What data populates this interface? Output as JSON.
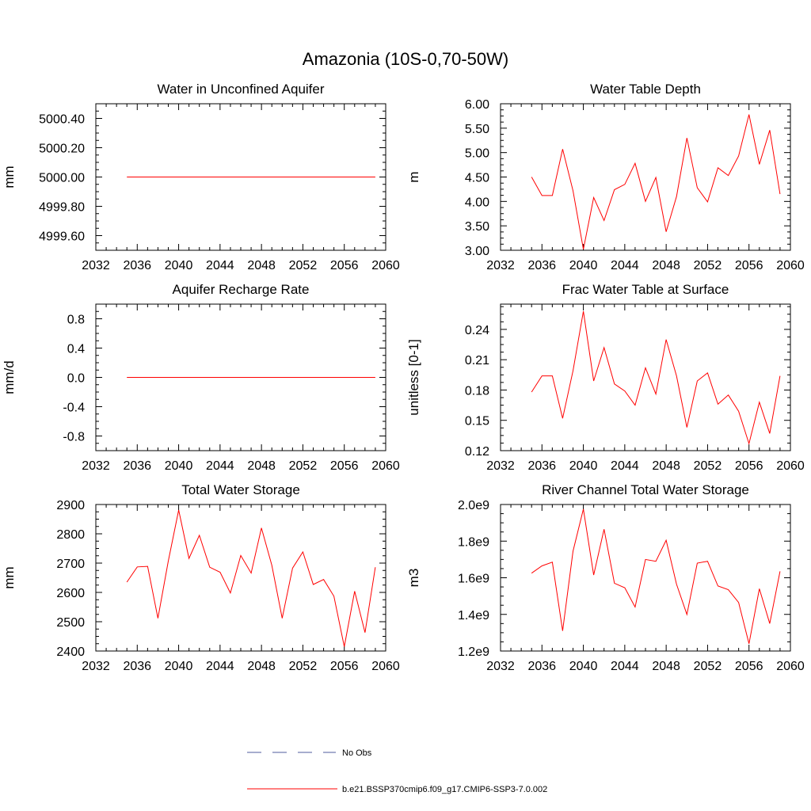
{
  "figure": {
    "title": "Amazonia (10S-0,70-50W)",
    "line_color": "#ff0000",
    "obs_color": "#4f5b9e"
  },
  "legend": {
    "obs_label": "No Obs",
    "model_label": "b.e21.BSSP370cmip6.f09_g17.CMIP6-SSP3-7.0.002"
  },
  "chart_data": [
    {
      "type": "line",
      "title": "Water in Unconfined Aquifer",
      "ylabel": "mm",
      "xlim": [
        2032,
        2060
      ],
      "xticks": [
        2032,
        2036,
        2040,
        2044,
        2048,
        2052,
        2056,
        2060
      ],
      "ylim": [
        4999.5,
        5000.5
      ],
      "yticks": [
        4999.6,
        4999.8,
        5000.0,
        5000.2,
        5000.4
      ],
      "ytick_labels": [
        "4999.60",
        "4999.80",
        "5000.00",
        "5000.20",
        "5000.40"
      ],
      "x": [
        2035,
        2036,
        2037,
        2038,
        2039,
        2040,
        2041,
        2042,
        2043,
        2044,
        2045,
        2046,
        2047,
        2048,
        2049,
        2050,
        2051,
        2052,
        2053,
        2054,
        2055,
        2056,
        2057,
        2058,
        2059
      ],
      "series": [
        {
          "values": [
            5000,
            5000,
            5000,
            5000,
            5000,
            5000,
            5000,
            5000,
            5000,
            5000,
            5000,
            5000,
            5000,
            5000,
            5000,
            5000,
            5000,
            5000,
            5000,
            5000,
            5000,
            5000,
            5000,
            5000,
            5000
          ]
        }
      ]
    },
    {
      "type": "line",
      "title": "Water Table Depth",
      "ylabel": "m",
      "xlim": [
        2032,
        2060
      ],
      "xticks": [
        2032,
        2036,
        2040,
        2044,
        2048,
        2052,
        2056,
        2060
      ],
      "ylim": [
        3.0,
        6.0
      ],
      "yticks": [
        3.0,
        3.5,
        4.0,
        4.5,
        5.0,
        5.5,
        6.0
      ],
      "ytick_labels": [
        "3.00",
        "3.50",
        "4.00",
        "4.50",
        "5.00",
        "5.50",
        "6.00"
      ],
      "x": [
        2035,
        2036,
        2037,
        2038,
        2039,
        2040,
        2041,
        2042,
        2043,
        2044,
        2045,
        2046,
        2047,
        2048,
        2049,
        2050,
        2051,
        2052,
        2053,
        2054,
        2055,
        2056,
        2057,
        2058,
        2059
      ],
      "series": [
        {
          "values": [
            4.5,
            4.12,
            4.12,
            5.07,
            4.22,
            3.02,
            4.08,
            3.61,
            4.24,
            4.35,
            4.78,
            4.0,
            4.49,
            3.38,
            4.1,
            5.3,
            4.28,
            3.99,
            4.69,
            4.53,
            4.93,
            5.78,
            4.76,
            5.46,
            4.15
          ]
        }
      ]
    },
    {
      "type": "line",
      "title": "Aquifer Recharge Rate",
      "ylabel": "mm/d",
      "xlim": [
        2032,
        2060
      ],
      "xticks": [
        2032,
        2036,
        2040,
        2044,
        2048,
        2052,
        2056,
        2060
      ],
      "ylim": [
        -1.0,
        1.0
      ],
      "yticks": [
        -0.8,
        -0.4,
        0.0,
        0.4,
        0.8
      ],
      "ytick_labels": [
        "-0.8",
        "-0.4",
        "0.0",
        "0.4",
        "0.8"
      ],
      "x": [
        2035,
        2036,
        2037,
        2038,
        2039,
        2040,
        2041,
        2042,
        2043,
        2044,
        2045,
        2046,
        2047,
        2048,
        2049,
        2050,
        2051,
        2052,
        2053,
        2054,
        2055,
        2056,
        2057,
        2058,
        2059
      ],
      "series": [
        {
          "values": [
            0,
            0,
            0,
            0,
            0,
            0,
            0,
            0,
            0,
            0,
            0,
            0,
            0,
            0,
            0,
            0,
            0,
            0,
            0,
            0,
            0,
            0,
            0,
            0,
            0
          ]
        }
      ]
    },
    {
      "type": "line",
      "title": "Frac Water Table at Surface",
      "ylabel": "unitless [0-1]",
      "xlim": [
        2032,
        2060
      ],
      "xticks": [
        2032,
        2036,
        2040,
        2044,
        2048,
        2052,
        2056,
        2060
      ],
      "ylim": [
        0.12,
        0.265
      ],
      "yticks": [
        0.12,
        0.15,
        0.18,
        0.21,
        0.24
      ],
      "ytick_labels": [
        "0.12",
        "0.15",
        "0.18",
        "0.21",
        "0.24"
      ],
      "x": [
        2035,
        2036,
        2037,
        2038,
        2039,
        2040,
        2041,
        2042,
        2043,
        2044,
        2045,
        2046,
        2047,
        2048,
        2049,
        2050,
        2051,
        2052,
        2053,
        2054,
        2055,
        2056,
        2057,
        2058,
        2059
      ],
      "series": [
        {
          "values": [
            0.178,
            0.194,
            0.194,
            0.152,
            0.199,
            0.258,
            0.189,
            0.222,
            0.186,
            0.179,
            0.165,
            0.202,
            0.176,
            0.23,
            0.194,
            0.143,
            0.189,
            0.197,
            0.166,
            0.175,
            0.159,
            0.127,
            0.168,
            0.137,
            0.194
          ]
        }
      ]
    },
    {
      "type": "line",
      "title": "Total Water Storage",
      "ylabel": "mm",
      "xlim": [
        2032,
        2060
      ],
      "xticks": [
        2032,
        2036,
        2040,
        2044,
        2048,
        2052,
        2056,
        2060
      ],
      "ylim": [
        2400,
        2900
      ],
      "yticks": [
        2400,
        2500,
        2600,
        2700,
        2800,
        2900
      ],
      "ytick_labels": [
        "2400",
        "2500",
        "2600",
        "2700",
        "2800",
        "2900"
      ],
      "x": [
        2035,
        2036,
        2037,
        2038,
        2039,
        2040,
        2041,
        2042,
        2043,
        2044,
        2045,
        2046,
        2047,
        2048,
        2049,
        2050,
        2051,
        2052,
        2053,
        2054,
        2055,
        2056,
        2057,
        2058,
        2059
      ],
      "series": [
        {
          "values": [
            2635,
            2687,
            2689,
            2512,
            2707,
            2881,
            2716,
            2795,
            2686,
            2669,
            2598,
            2726,
            2666,
            2820,
            2693,
            2512,
            2683,
            2738,
            2627,
            2644,
            2587,
            2415,
            2604,
            2463,
            2686
          ]
        }
      ]
    },
    {
      "type": "line",
      "title": "River Channel Total Water Storage",
      "ylabel": "m3",
      "xlim": [
        2032,
        2060
      ],
      "xticks": [
        2032,
        2036,
        2040,
        2044,
        2048,
        2052,
        2056,
        2060
      ],
      "ylim": [
        1200000000.0,
        2000000000.0
      ],
      "yticks": [
        1200000000.0,
        1400000000.0,
        1600000000.0,
        1800000000.0,
        2000000000.0
      ],
      "ytick_labels": [
        "1.2e9",
        "1.4e9",
        "1.6e9",
        "1.8e9",
        "2.0e9"
      ],
      "x": [
        2035,
        2036,
        2037,
        2038,
        2039,
        2040,
        2041,
        2042,
        2043,
        2044,
        2045,
        2046,
        2047,
        2048,
        2049,
        2050,
        2051,
        2052,
        2053,
        2054,
        2055,
        2056,
        2057,
        2058,
        2059
      ],
      "series": [
        {
          "values": [
            1625000000.0,
            1665000000.0,
            1685000000.0,
            1310000000.0,
            1745000000.0,
            1975000000.0,
            1615000000.0,
            1865000000.0,
            1570000000.0,
            1545000000.0,
            1440000000.0,
            1700000000.0,
            1690000000.0,
            1805000000.0,
            1565000000.0,
            1400000000.0,
            1680000000.0,
            1690000000.0,
            1555000000.0,
            1535000000.0,
            1465000000.0,
            1240000000.0,
            1540000000.0,
            1350000000.0,
            1635000000.0
          ]
        }
      ]
    }
  ]
}
